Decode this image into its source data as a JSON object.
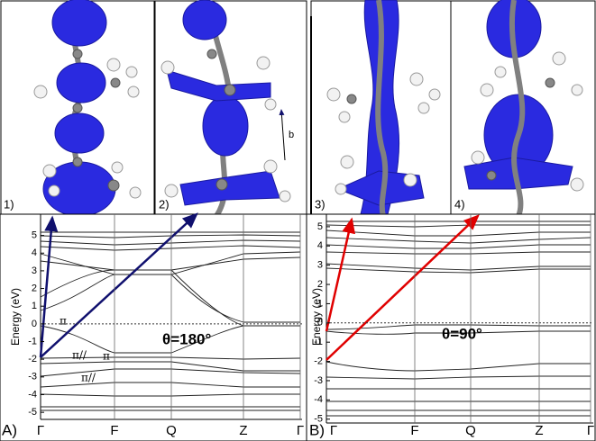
{
  "figures": [
    {
      "label": "1)"
    },
    {
      "label": "2)",
      "vector_label": "b"
    },
    {
      "label": "3)"
    },
    {
      "label": "4)"
    }
  ],
  "panels": [
    {
      "label": "A)",
      "y_axis_label": "Energy (eV)",
      "ylim": [
        -5.4,
        6.2
      ],
      "yticks": [
        5,
        4,
        3,
        2,
        1,
        0,
        -1,
        -2,
        -3,
        -4,
        -5
      ],
      "x_labels": [
        "Γ",
        "F",
        "Q",
        "Z",
        "Γ"
      ],
      "angle_label": "θ=180°",
      "band_labels": [
        "π",
        "π//",
        "π",
        "π//"
      ]
    },
    {
      "label": "B)",
      "y_axis_label": "Energy (eV)",
      "ylim": [
        -5.2,
        5.65
      ],
      "yticks": [
        5,
        4,
        3,
        2,
        1,
        0,
        -1,
        -2,
        -3,
        -4,
        -5
      ],
      "x_labels": [
        "Γ",
        "F",
        "Q",
        "Z",
        "Γ"
      ],
      "angle_label": "θ=90°"
    }
  ]
}
